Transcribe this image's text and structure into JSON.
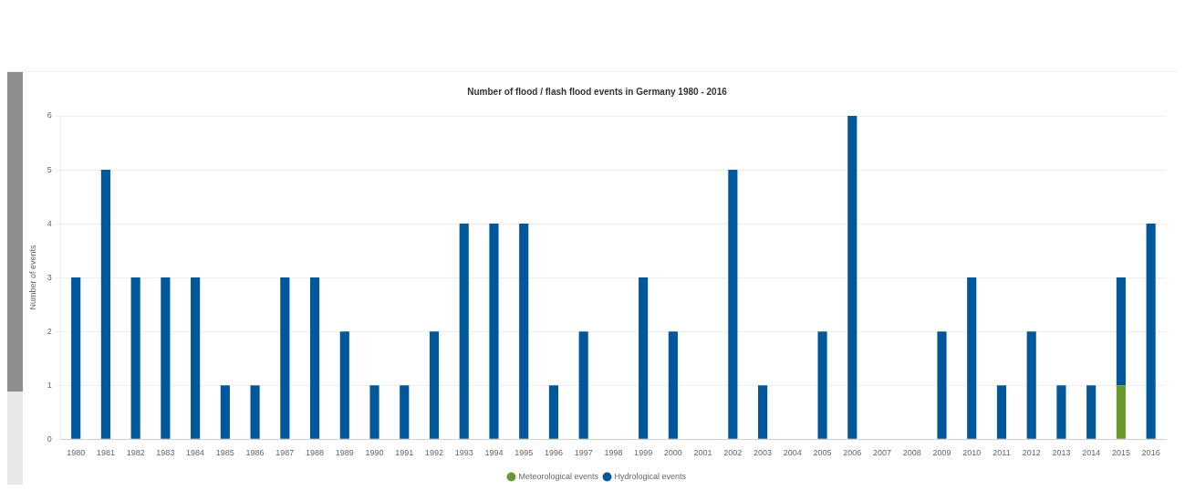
{
  "chart_data": {
    "type": "bar",
    "title": "Number of flood / flash flood events in Germany 1980 - 2016",
    "ylabel": "Number of events",
    "categories": [
      "1980",
      "1981",
      "1982",
      "1983",
      "1984",
      "1985",
      "1986",
      "1987",
      "1988",
      "1989",
      "1990",
      "1991",
      "1992",
      "1993",
      "1994",
      "1995",
      "1996",
      "1997",
      "1998",
      "1999",
      "2000",
      "2001",
      "2002",
      "2003",
      "2004",
      "2005",
      "2006",
      "2007",
      "2008",
      "2009",
      "2010",
      "2011",
      "2012",
      "2013",
      "2014",
      "2015",
      "2016"
    ],
    "stacked": true,
    "series": [
      {
        "name": "Meteorological events",
        "color": "#6b9a2c",
        "values": [
          0,
          0,
          0,
          0,
          0,
          0,
          0,
          0,
          0,
          0,
          0,
          0,
          0,
          0,
          0,
          0,
          0,
          0,
          0,
          0,
          0,
          0,
          0,
          0,
          0,
          0,
          0,
          0,
          0,
          0,
          0,
          0,
          0,
          0,
          0,
          1,
          0
        ]
      },
      {
        "name": "Hydrological events",
        "color": "#00589c",
        "values": [
          3,
          5,
          3,
          3,
          3,
          1,
          1,
          3,
          3,
          2,
          1,
          1,
          2,
          4,
          4,
          4,
          1,
          2,
          0,
          3,
          2,
          0,
          5,
          1,
          0,
          2,
          6,
          0,
          0,
          2,
          3,
          1,
          2,
          1,
          1,
          2,
          4
        ]
      }
    ],
    "ylim": [
      0,
      6
    ],
    "yticks": [
      0,
      1,
      2,
      3,
      4,
      5,
      6
    ],
    "grid": "y",
    "legend": "bottom"
  }
}
